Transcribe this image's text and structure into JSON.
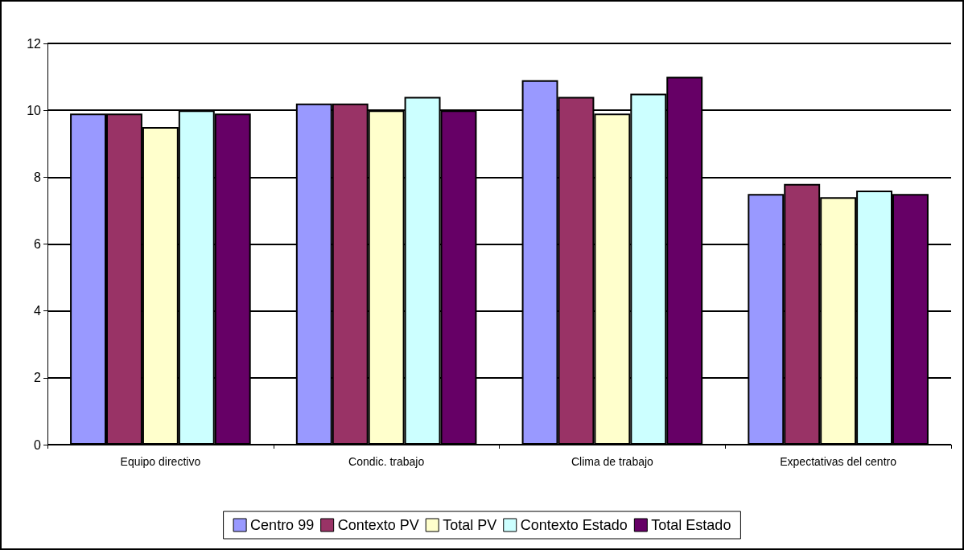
{
  "chart_data": {
    "type": "bar",
    "categories": [
      "Equipo directivo",
      "Condic. trabajo",
      "Clima de trabajo",
      "Expectativas del centro"
    ],
    "series": [
      {
        "name": "Centro 99",
        "color": "#9999ff",
        "values": [
          9.9,
          10.2,
          10.9,
          7.5
        ]
      },
      {
        "name": "Contexto PV",
        "color": "#993366",
        "values": [
          9.9,
          10.2,
          10.4,
          7.8
        ]
      },
      {
        "name": "Total PV",
        "color": "#ffffcc",
        "values": [
          9.5,
          10.0,
          9.9,
          7.4
        ]
      },
      {
        "name": "Contexto Estado",
        "color": "#ccffff",
        "values": [
          10.0,
          10.4,
          10.5,
          7.6
        ]
      },
      {
        "name": "Total Estado",
        "color": "#660066",
        "values": [
          9.9,
          10.0,
          11.0,
          7.5
        ]
      }
    ],
    "ylim": [
      0,
      12
    ],
    "yticks": [
      0,
      2,
      4,
      6,
      8,
      10,
      12
    ],
    "grid": "y",
    "legend": "bottom"
  }
}
